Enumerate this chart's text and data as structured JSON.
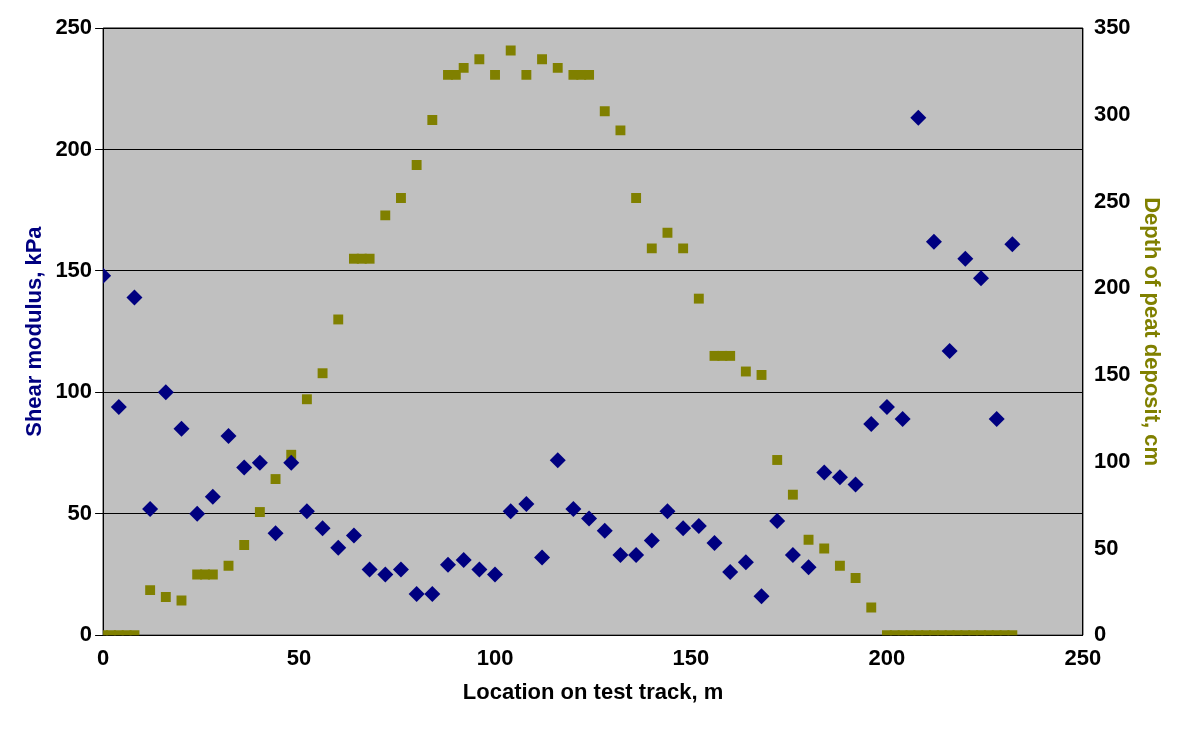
{
  "chart_data": {
    "type": "scatter",
    "xlabel": "Location on test track, m",
    "ylabel": "Shear modulus, kPa",
    "y2label": "Depth of peat deposit, cm",
    "xlim": [
      0,
      250
    ],
    "xticks": [
      0,
      50,
      100,
      150,
      200,
      250
    ],
    "ylim": [
      0,
      250
    ],
    "yticks": [
      0,
      50,
      100,
      150,
      200,
      250
    ],
    "y2lim": [
      0,
      350
    ],
    "y2ticks": [
      0,
      50,
      100,
      150,
      200,
      250,
      300,
      350
    ],
    "grid": "y",
    "legend": false,
    "series": [
      {
        "color": "#000080",
        "marker": "diamond",
        "x": [
          0,
          4,
          8,
          12,
          16,
          20,
          24,
          28,
          32,
          36,
          40,
          44,
          48,
          52,
          56,
          60,
          64,
          68,
          72,
          76,
          80,
          84,
          88,
          92,
          96,
          100,
          104,
          108,
          112,
          116,
          120,
          124,
          128,
          132,
          136,
          140,
          144,
          148,
          152,
          156,
          160,
          164,
          168,
          172,
          176,
          180,
          184,
          188,
          192,
          196,
          200,
          204,
          208,
          212,
          216,
          220,
          224,
          228,
          232
        ],
        "values": [
          148,
          94,
          139,
          52,
          100,
          85,
          50,
          57,
          82,
          69,
          71,
          42,
          71,
          51,
          44,
          36,
          41,
          27,
          25,
          27,
          17,
          17,
          29,
          31,
          27,
          25,
          51,
          54,
          32,
          72,
          52,
          48,
          43,
          33,
          33,
          39,
          51,
          44,
          45,
          38,
          26,
          30,
          16,
          47,
          33,
          28,
          67,
          65,
          62,
          87,
          94,
          89,
          213,
          162,
          117,
          155,
          147,
          89,
          161
        ]
      },
      {
        "color": "#808000",
        "marker": "square",
        "axis": "y2",
        "x": [
          0,
          2,
          4,
          6,
          8,
          12,
          16,
          20,
          24,
          26,
          28,
          32,
          36,
          40,
          44,
          48,
          52,
          56,
          60,
          64,
          66,
          68,
          72,
          76,
          80,
          84,
          88,
          90,
          92,
          96,
          100,
          104,
          108,
          112,
          116,
          120,
          122,
          124,
          128,
          132,
          136,
          140,
          144,
          148,
          152,
          156,
          158,
          160,
          164,
          168,
          172,
          176,
          180,
          184,
          188,
          192,
          196,
          200,
          202,
          204,
          206,
          208,
          210,
          212,
          214,
          216,
          218,
          220,
          222,
          224,
          226,
          228,
          230,
          232
        ],
        "values": [
          0,
          0,
          0,
          0,
          0,
          26,
          22,
          20,
          35,
          35,
          35,
          40,
          52,
          71,
          90,
          104,
          136,
          151,
          182,
          217,
          217,
          217,
          242,
          252,
          271,
          297,
          323,
          323,
          327,
          332,
          323,
          337,
          323,
          332,
          327,
          323,
          323,
          323,
          302,
          291,
          252,
          223,
          232,
          223,
          194,
          161,
          161,
          161,
          152,
          150,
          101,
          81,
          55,
          50,
          40,
          33,
          16,
          0,
          0,
          0,
          0,
          0,
          0,
          0,
          0,
          0,
          0,
          0,
          0,
          0,
          0,
          0,
          0,
          0
        ]
      }
    ]
  }
}
